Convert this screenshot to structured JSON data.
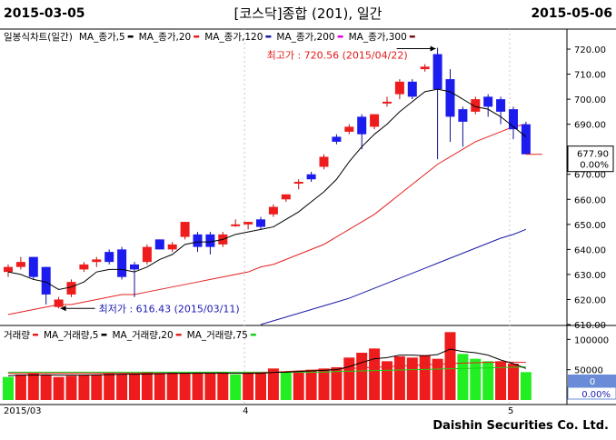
{
  "header": {
    "date_start": "2015-03-05",
    "title": "[코스닥]종합 (201), 일간",
    "date_end": "2015-05-06"
  },
  "price_legend": [
    {
      "label": "일봉식차트(일간)",
      "marker": "",
      "color": "#000000"
    },
    {
      "label": "MA_종가,5",
      "marker": "dash",
      "color": "#000000"
    },
    {
      "label": "MA_종가,20",
      "marker": "dash",
      "color": "#e52020"
    },
    {
      "label": "MA_종가,120",
      "marker": "dash",
      "color": "#1a1aa6"
    },
    {
      "label": "MA_종가,200",
      "marker": "dash",
      "color": "#e000e0"
    },
    {
      "label": "MA_종가,300",
      "marker": "dash",
      "color": "#7a1010"
    }
  ],
  "volume_legend": [
    {
      "label": "거래량",
      "marker": "dash",
      "color": "#e52020"
    },
    {
      "label": "MA_거래량,5",
      "marker": "dash",
      "color": "#000000"
    },
    {
      "label": "MA_거래량,20",
      "marker": "dash",
      "color": "#e52020"
    },
    {
      "label": "MA_거래량,75",
      "marker": "dash",
      "color": "#19d119"
    }
  ],
  "annotations": {
    "high": "최고가 : 720.56 (2015/04/22)",
    "low": "최저가 : 616.43 (2015/03/11)"
  },
  "price_box": {
    "value": "677.90",
    "change": "0.00%"
  },
  "volume_box": {
    "value": "0",
    "change": "0.00%"
  },
  "x_labels": [
    "2015/03",
    "4",
    "5"
  ],
  "footer": "Daishin Securities Co. Ltd.",
  "colors": {
    "up": "#ee1c1c",
    "down": "#1c1cee",
    "vol_up": "#ee1c1c",
    "vol_down": "#22ee22",
    "ma5": "#000000",
    "ma20": "#e52020",
    "ma120": "#1a1aa6"
  },
  "chart_data": [
    {
      "type": "candlestick",
      "y_axis_side": "right",
      "ylim": [
        610,
        728
      ],
      "yticks": [
        610,
        620,
        630,
        640,
        650,
        660,
        670,
        680,
        690,
        700,
        710,
        720
      ],
      "candles": [
        {
          "o": 631,
          "h": 634,
          "l": 629,
          "c": 633
        },
        {
          "o": 633,
          "h": 637,
          "l": 632,
          "c": 635
        },
        {
          "o": 637,
          "h": 637,
          "l": 628,
          "c": 629
        },
        {
          "o": 633,
          "h": 633,
          "l": 618,
          "c": 622
        },
        {
          "o": 617,
          "h": 621,
          "l": 616.43,
          "c": 620
        },
        {
          "o": 622,
          "h": 628,
          "l": 621,
          "c": 627
        },
        {
          "o": 632,
          "h": 635,
          "l": 631,
          "c": 634
        },
        {
          "o": 635,
          "h": 637,
          "l": 633,
          "c": 636
        },
        {
          "o": 639,
          "h": 640,
          "l": 634,
          "c": 635
        },
        {
          "o": 640,
          "h": 641,
          "l": 628,
          "c": 629
        },
        {
          "o": 634,
          "h": 635,
          "l": 621,
          "c": 632
        },
        {
          "o": 635,
          "h": 642,
          "l": 634,
          "c": 641
        },
        {
          "o": 644,
          "h": 644,
          "l": 640,
          "c": 640
        },
        {
          "o": 640,
          "h": 643,
          "l": 639,
          "c": 642
        },
        {
          "o": 645,
          "h": 651,
          "l": 644,
          "c": 651
        },
        {
          "o": 646,
          "h": 647,
          "l": 639,
          "c": 641
        },
        {
          "o": 646,
          "h": 647,
          "l": 638,
          "c": 641
        },
        {
          "o": 642,
          "h": 647,
          "l": 641,
          "c": 646
        },
        {
          "o": 650,
          "h": 652,
          "l": 649,
          "c": 650
        },
        {
          "o": 650,
          "h": 651,
          "l": 648,
          "c": 651
        },
        {
          "o": 652,
          "h": 653,
          "l": 648,
          "c": 649
        },
        {
          "o": 654,
          "h": 658,
          "l": 653,
          "c": 657
        },
        {
          "o": 660,
          "h": 662,
          "l": 659,
          "c": 662
        },
        {
          "o": 667,
          "h": 668,
          "l": 664,
          "c": 667
        },
        {
          "o": 670,
          "h": 671,
          "l": 667,
          "c": 668
        },
        {
          "o": 673,
          "h": 678,
          "l": 672,
          "c": 677
        },
        {
          "o": 685,
          "h": 686,
          "l": 682,
          "c": 683
        },
        {
          "o": 687,
          "h": 690,
          "l": 686,
          "c": 689
        },
        {
          "o": 693,
          "h": 694,
          "l": 680,
          "c": 686
        },
        {
          "o": 689,
          "h": 694,
          "l": 688,
          "c": 694
        },
        {
          "o": 699,
          "h": 701,
          "l": 697,
          "c": 699
        },
        {
          "o": 702,
          "h": 708,
          "l": 700,
          "c": 707
        },
        {
          "o": 707,
          "h": 708,
          "l": 700,
          "c": 701
        },
        {
          "o": 712,
          "h": 714,
          "l": 711,
          "c": 713
        },
        {
          "o": 718,
          "h": 720.56,
          "l": 676,
          "c": 704
        },
        {
          "o": 708,
          "h": 712,
          "l": 683,
          "c": 693
        },
        {
          "o": 696,
          "h": 697,
          "l": 681,
          "c": 691
        },
        {
          "o": 695,
          "h": 701,
          "l": 694,
          "c": 700
        },
        {
          "o": 701,
          "h": 702,
          "l": 693,
          "c": 697
        },
        {
          "o": 700,
          "h": 701,
          "l": 690,
          "c": 695
        },
        {
          "o": 696,
          "h": 697,
          "l": 684,
          "c": 688
        },
        {
          "o": 690,
          "h": 691,
          "l": 678,
          "c": 678
        }
      ],
      "ma5": [
        631,
        630,
        628,
        627,
        624,
        625,
        627,
        631,
        632,
        632,
        631,
        633,
        636,
        638,
        642,
        643,
        643,
        644,
        646,
        647,
        648,
        649,
        652,
        655,
        659,
        663,
        668,
        675,
        681,
        686,
        690,
        695,
        699,
        703,
        704,
        703,
        700,
        697,
        696,
        693,
        689,
        685
      ],
      "ma20": [
        614,
        615,
        616,
        617,
        618,
        618,
        619,
        620,
        621,
        622,
        622,
        623,
        624,
        625,
        626,
        627,
        628,
        629,
        630,
        631,
        633,
        634,
        636,
        638,
        640,
        642,
        645,
        648,
        651,
        654,
        658,
        662,
        666,
        670,
        674,
        677,
        680,
        683,
        685,
        687,
        689,
        690
      ],
      "ma120": [
        null,
        null,
        null,
        null,
        null,
        null,
        null,
        null,
        null,
        null,
        null,
        null,
        null,
        null,
        null,
        null,
        null,
        null,
        null,
        null,
        610,
        611.5,
        613,
        614.5,
        616,
        617.5,
        619,
        620.5,
        622.5,
        624.5,
        626.5,
        628.5,
        630.5,
        632.5,
        634.5,
        636.5,
        638.5,
        640.5,
        642.5,
        644.5,
        646,
        648
      ]
    },
    {
      "type": "bar",
      "y_axis_side": "right",
      "ylim": [
        0,
        120000
      ],
      "yticks": [
        50000,
        100000
      ],
      "volumes": [
        38000,
        42000,
        44000,
        42000,
        38000,
        40000,
        41000,
        42000,
        44000,
        42000,
        44000,
        46000,
        44000,
        45000,
        45000,
        44000,
        44000,
        46000,
        42000,
        44000,
        44000,
        52000,
        46000,
        46000,
        50000,
        52000,
        54000,
        70000,
        78000,
        85000,
        64000,
        72000,
        70000,
        74000,
        68000,
        112000,
        76000,
        68000,
        64000,
        64000,
        60000,
        46000
      ],
      "volume_up": [
        false,
        true,
        true,
        true,
        true,
        true,
        true,
        true,
        true,
        true,
        true,
        true,
        true,
        true,
        true,
        true,
        true,
        true,
        false,
        true,
        true,
        true,
        false,
        true,
        true,
        true,
        true,
        true,
        true,
        true,
        true,
        true,
        true,
        true,
        true,
        true,
        false,
        false,
        false,
        true,
        true,
        false
      ],
      "vol_ma5": [
        40000,
        41000,
        41000,
        41500,
        41000,
        41000,
        41000,
        41500,
        42000,
        42500,
        42500,
        43000,
        43500,
        44000,
        44000,
        44500,
        44500,
        44500,
        44000,
        44000,
        44000,
        45500,
        46000,
        47000,
        48000,
        49000,
        50000,
        55000,
        62000,
        68000,
        70000,
        74000,
        74000,
        73000,
        75000,
        84000,
        80000,
        78000,
        74000,
        66000,
        60000,
        52000
      ],
      "vol_ma20": [
        44000,
        44000,
        44000,
        44000,
        44000,
        44000,
        44000,
        44000,
        44000,
        44000,
        44000,
        44000,
        44000,
        44000,
        44000,
        44000,
        44000,
        44000,
        44000,
        44500,
        45000,
        46000,
        47000,
        48000,
        49000,
        50000,
        51000,
        52000,
        53000,
        54000,
        55000,
        56000,
        57000,
        58000,
        59000,
        60000,
        61000,
        61500,
        62000,
        62500,
        62500,
        62000
      ],
      "vol_ma75": [
        46000,
        46000,
        46000,
        46000,
        46000,
        46000,
        46000,
        46000,
        46000,
        46000,
        46000,
        46000,
        46000,
        46000,
        46000,
        46000,
        46000,
        46000,
        46000,
        46000,
        46000,
        46000,
        46000,
        46000,
        46000,
        46000,
        47000,
        47500,
        48000,
        48500,
        49000,
        49500,
        50000,
        50500,
        51000,
        51500,
        52000,
        52500,
        53000,
        53500,
        54000,
        54500
      ]
    }
  ]
}
